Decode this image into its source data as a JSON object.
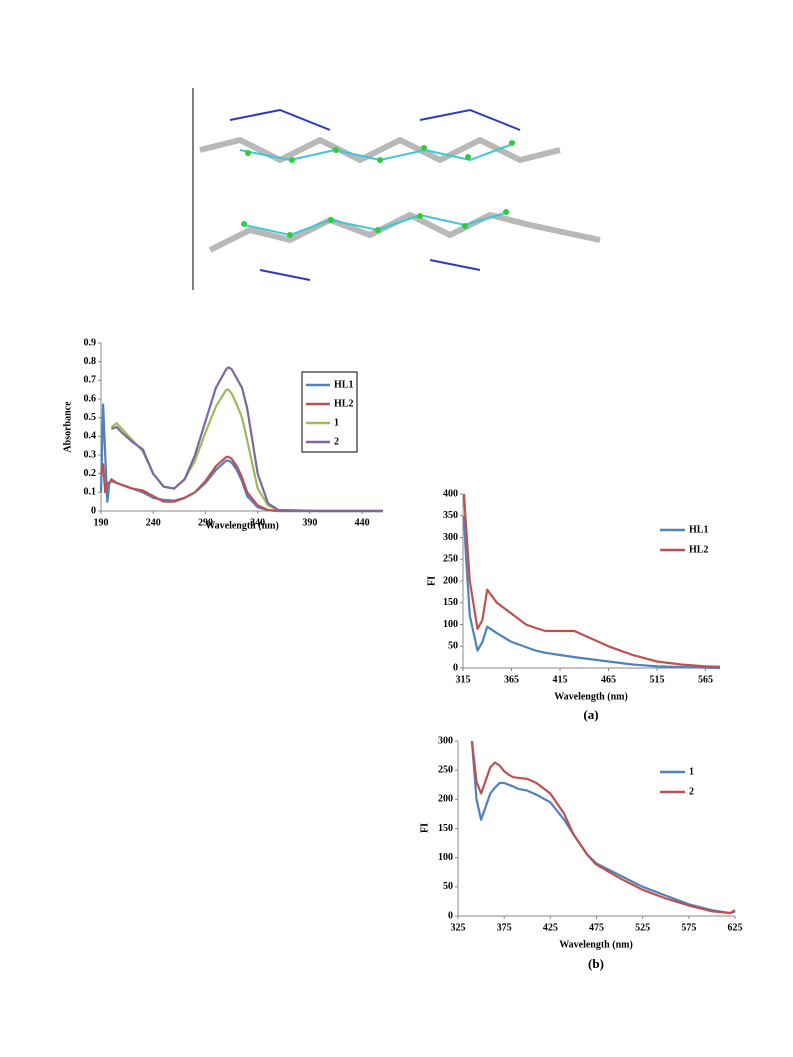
{
  "chart_data": [
    {
      "type": "line",
      "y_label": "Absorbance",
      "x_label": "Wavelength (nm)",
      "legend": "upper right",
      "legend_box": true,
      "xlim": [
        190,
        460
      ],
      "xticks": [
        190,
        240,
        290,
        340,
        390,
        440
      ],
      "ylim": [
        0,
        0.9
      ],
      "yticks": [
        0,
        0.1,
        0.2,
        0.3,
        0.4,
        0.5,
        0.6,
        0.7,
        0.8,
        0.9
      ],
      "x": [
        190,
        192,
        194,
        196,
        198,
        200,
        205,
        210,
        220,
        230,
        240,
        250,
        260,
        270,
        280,
        290,
        300,
        310,
        312,
        315,
        320,
        325,
        330,
        340,
        350,
        360,
        400,
        460
      ],
      "series": [
        {
          "name": "HL1",
          "color": "#4f81bd",
          "values": [
            0.1,
            0.57,
            0.3,
            0.05,
            0.15,
            0.16,
            0.15,
            0.14,
            0.12,
            0.1,
            0.07,
            0.06,
            0.055,
            0.07,
            0.1,
            0.15,
            0.22,
            0.27,
            0.27,
            0.26,
            0.22,
            0.16,
            0.08,
            0.02,
            0.005,
            0,
            0,
            0
          ]
        },
        {
          "name": "HL2",
          "color": "#c0504d",
          "values": [
            0.2,
            0.25,
            0.1,
            0.15,
            0.15,
            0.17,
            0.15,
            0.14,
            0.12,
            0.11,
            0.08,
            0.05,
            0.05,
            0.07,
            0.1,
            0.16,
            0.24,
            0.29,
            0.29,
            0.28,
            0.24,
            0.18,
            0.1,
            0.03,
            0.005,
            0,
            0,
            0
          ]
        },
        {
          "name": "1",
          "color": "#9bbb59",
          "values": [
            null,
            null,
            null,
            null,
            null,
            0.45,
            0.47,
            0.44,
            0.38,
            0.32,
            0.2,
            0.13,
            0.12,
            0.17,
            0.27,
            0.42,
            0.56,
            0.65,
            0.65,
            0.63,
            0.57,
            0.5,
            0.38,
            0.12,
            0.03,
            0.005,
            0,
            0
          ]
        },
        {
          "name": "2",
          "color": "#8064a2",
          "values": [
            null,
            null,
            null,
            null,
            null,
            0.44,
            0.45,
            0.42,
            0.37,
            0.33,
            0.2,
            0.13,
            0.12,
            0.17,
            0.3,
            0.48,
            0.66,
            0.76,
            0.77,
            0.76,
            0.71,
            0.66,
            0.55,
            0.2,
            0.04,
            0.005,
            0,
            0
          ]
        }
      ]
    },
    {
      "type": "line",
      "y_label": "FI",
      "x_label": "Wavelength (nm)",
      "caption": "(a)",
      "legend": "upper right",
      "legend_box": false,
      "xlim": [
        315,
        580
      ],
      "xticks": [
        315,
        365,
        415,
        465,
        515,
        565
      ],
      "ylim": [
        0,
        400
      ],
      "yticks": [
        0,
        50,
        100,
        150,
        200,
        250,
        300,
        350,
        400
      ],
      "x": [
        316,
        318,
        322,
        330,
        335,
        340,
        350,
        365,
        380,
        390,
        400,
        415,
        430,
        440,
        465,
        490,
        515,
        540,
        565,
        580
      ],
      "series": [
        {
          "name": "HL1",
          "color": "#4f81bd",
          "values": [
            350,
            260,
            120,
            40,
            60,
            95,
            80,
            60,
            48,
            40,
            35,
            30,
            25,
            22,
            15,
            8,
            4,
            2,
            1,
            0
          ]
        },
        {
          "name": "HL2",
          "color": "#c0504d",
          "values": [
            400,
            330,
            200,
            90,
            110,
            180,
            150,
            125,
            100,
            92,
            85,
            85,
            85,
            75,
            50,
            30,
            15,
            8,
            4,
            3
          ]
        }
      ]
    },
    {
      "type": "line",
      "y_label": "FI",
      "x_label": "Wavelength (nm)",
      "caption": "(b)",
      "legend": "upper right",
      "legend_box": false,
      "xlim": [
        325,
        625
      ],
      "xticks": [
        325,
        375,
        425,
        475,
        525,
        575,
        625
      ],
      "ylim": [
        0,
        300
      ],
      "yticks": [
        0,
        50,
        100,
        150,
        200,
        250,
        300
      ],
      "x": [
        340,
        345,
        350,
        360,
        365,
        370,
        375,
        380,
        385,
        390,
        400,
        410,
        425,
        440,
        450,
        465,
        475,
        500,
        525,
        550,
        575,
        600,
        620,
        625
      ],
      "series": [
        {
          "name": "1",
          "color": "#4f81bd",
          "values": [
            300,
            200,
            165,
            210,
            220,
            228,
            228,
            225,
            222,
            218,
            215,
            208,
            195,
            165,
            140,
            105,
            90,
            70,
            50,
            35,
            20,
            10,
            5,
            8
          ]
        },
        {
          "name": "2",
          "color": "#c0504d",
          "values": [
            300,
            230,
            210,
            255,
            263,
            258,
            248,
            242,
            238,
            237,
            235,
            228,
            210,
            175,
            140,
            105,
            88,
            65,
            45,
            30,
            18,
            8,
            5,
            10
          ]
        }
      ]
    }
  ]
}
